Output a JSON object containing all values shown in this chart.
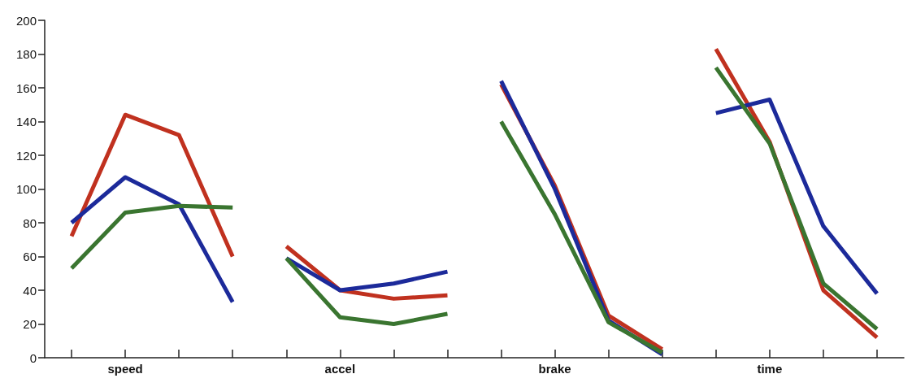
{
  "chart_data": {
    "type": "line",
    "categories": [
      null,
      "speed",
      null,
      null,
      null,
      "accel",
      null,
      null,
      null,
      "brake",
      null,
      null,
      null,
      "time",
      null,
      null
    ],
    "ylim": [
      0,
      200
    ],
    "yticks": [
      0,
      20,
      40,
      60,
      80,
      100,
      120,
      140,
      160,
      180,
      200
    ],
    "grid": false,
    "marker": "none",
    "line_style": "solid",
    "series": [
      {
        "color": "#c0311f",
        "values": [
          72,
          144,
          132,
          60,
          null,
          null,
          null,
          null,
          null,
          null,
          null,
          null,
          null,
          null,
          null,
          null
        ]
      },
      {
        "color": "#1c2a9a",
        "values": [
          80,
          107,
          91,
          33,
          null,
          null,
          null,
          null,
          null,
          null,
          null,
          null,
          null,
          null,
          null,
          null
        ]
      },
      {
        "color": "#3a7530",
        "values": [
          53,
          86,
          90,
          89,
          null,
          null,
          null,
          null,
          null,
          null,
          null,
          null,
          null,
          null,
          null,
          null
        ]
      },
      {
        "color": "#c0311f",
        "values": [
          null,
          null,
          null,
          null,
          66,
          40,
          35,
          37,
          null,
          null,
          null,
          null,
          null,
          null,
          null,
          null
        ]
      },
      {
        "color": "#1c2a9a",
        "values": [
          null,
          null,
          null,
          null,
          59,
          40,
          44,
          51,
          null,
          null,
          null,
          null,
          null,
          null,
          null,
          null
        ]
      },
      {
        "color": "#3a7530",
        "values": [
          null,
          null,
          null,
          null,
          59,
          24,
          20,
          26,
          null,
          null,
          null,
          null,
          null,
          null,
          null,
          null
        ]
      },
      {
        "color": "#c0311f",
        "values": [
          null,
          null,
          null,
          null,
          null,
          null,
          null,
          null,
          162,
          102,
          25,
          5,
          null,
          null,
          null,
          null
        ]
      },
      {
        "color": "#1c2a9a",
        "values": [
          null,
          null,
          null,
          null,
          null,
          null,
          null,
          null,
          164,
          100,
          22,
          2,
          null,
          null,
          null,
          null
        ]
      },
      {
        "color": "#3a7530",
        "values": [
          null,
          null,
          null,
          null,
          null,
          null,
          null,
          null,
          140,
          85,
          21,
          3,
          null,
          null,
          null,
          null
        ]
      },
      {
        "color": "#c0311f",
        "values": [
          null,
          null,
          null,
          null,
          null,
          null,
          null,
          null,
          null,
          null,
          null,
          null,
          183,
          128,
          40,
          12
        ]
      },
      {
        "color": "#1c2a9a",
        "values": [
          null,
          null,
          null,
          null,
          null,
          null,
          null,
          null,
          null,
          null,
          null,
          null,
          145,
          153,
          78,
          38
        ]
      },
      {
        "color": "#3a7530",
        "values": [
          null,
          null,
          null,
          null,
          null,
          null,
          null,
          null,
          null,
          null,
          null,
          null,
          172,
          127,
          44,
          17
        ]
      }
    ]
  }
}
